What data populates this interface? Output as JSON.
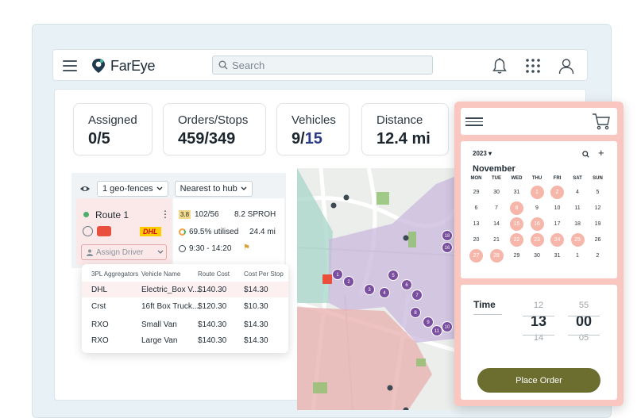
{
  "header": {
    "app_name": "FarEye",
    "search_placeholder": "Search"
  },
  "kpis": [
    {
      "label": "Assigned",
      "value": "0/5"
    },
    {
      "label": "Orders/Stops",
      "value": "459/349"
    },
    {
      "label": "Vehicles",
      "value_main": "9/",
      "value_muted": "15"
    },
    {
      "label": "Distance",
      "value": "12.4 mi"
    }
  ],
  "filters": {
    "geofence": "1 geo-fences",
    "sort": "Nearest to hub"
  },
  "route": {
    "name": "Route 1",
    "carrier_logo": "DHL",
    "assign_driver": "Assign Driver",
    "rating": "3.8",
    "capacity": "102/56",
    "distance_code": "8.2 SPROH",
    "utilised": "69.5% utilised",
    "time_window": "9:30 - 14:20",
    "duration": "24.4 mi"
  },
  "aggregator_table": {
    "headers": [
      "3PL Aggregators",
      "Vehicle Name",
      "Route Cost",
      "Cost Per Stop"
    ],
    "rows": [
      [
        "DHL",
        "Electric_Box V...",
        "$140.30",
        "$14.30"
      ],
      [
        "Crst",
        "16ft Box Truck...",
        "$120.30",
        "$10.30"
      ],
      [
        "RXO",
        "Small Van",
        "$140.30",
        "$14.30"
      ],
      [
        "RXO",
        "Large Van",
        "$140.30",
        "$14.30"
      ]
    ]
  },
  "map_markers": [
    "1",
    "2",
    "3",
    "4",
    "5",
    "6",
    "7",
    "8",
    "9",
    "10",
    "11",
    "12",
    "16",
    "18"
  ],
  "calendar": {
    "year": "2023",
    "month": "November",
    "weekdays": [
      "MON",
      "TUE",
      "WED",
      "THU",
      "FRI",
      "SAT",
      "SUN"
    ],
    "days": [
      [
        "29",
        "30",
        "31",
        "1",
        "2",
        "4",
        "5"
      ],
      [
        "6",
        "7",
        "8",
        "9",
        "10",
        "11",
        "12"
      ],
      [
        "13",
        "14",
        "15",
        "16",
        "17",
        "18",
        "19"
      ],
      [
        "20",
        "21",
        "22",
        "23",
        "24",
        "25",
        "26"
      ],
      [
        "27",
        "28",
        "29",
        "30",
        "31",
        "1",
        "2"
      ]
    ],
    "highlighted": [
      "1",
      "2",
      "8",
      "15",
      "16",
      "22",
      "23",
      "24",
      "25",
      "27",
      "28"
    ]
  },
  "time_picker": {
    "label": "Time",
    "hour_prev": "12",
    "hour": "13",
    "hour_next": "14",
    "minute_prev": "55",
    "minute": "00",
    "minute_next": "05"
  },
  "order_button": "Place Order",
  "colors": {
    "accent": "#f9c7bf",
    "button": "#6b6e2e",
    "marker": "#7a4fa0",
    "geofence_purple": "#c9b8de",
    "geofence_red": "#e8b3b1",
    "geofence_green": "#a7d6c8"
  }
}
